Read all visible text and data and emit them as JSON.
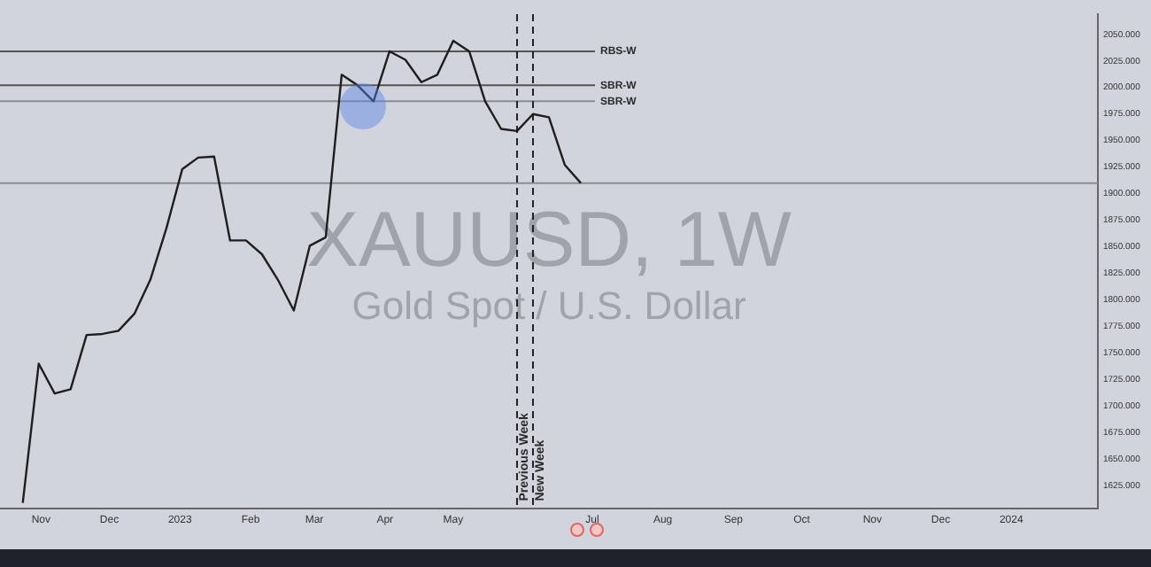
{
  "chart_data": {
    "type": "line",
    "title": "XAUUSD, 1W",
    "subtitle": "Gold Spot / U.S. Dollar",
    "x": [
      "2022-10-24",
      "2022-10-31",
      "2022-11-07",
      "2022-11-14",
      "2022-11-21",
      "2022-11-28",
      "2022-12-05",
      "2022-12-12",
      "2022-12-19",
      "2022-12-26",
      "2023-01-02",
      "2023-01-09",
      "2023-01-16",
      "2023-01-23",
      "2023-01-30",
      "2023-02-06",
      "2023-02-13",
      "2023-02-20",
      "2023-02-27",
      "2023-03-06",
      "2023-03-13",
      "2023-03-20",
      "2023-03-27",
      "2023-04-03",
      "2023-04-10",
      "2023-04-17",
      "2023-04-24",
      "2023-05-01",
      "2023-05-08",
      "2023-05-15",
      "2023-05-22",
      "2023-05-29",
      "2023-06-05",
      "2023-06-12",
      "2023-06-19",
      "2023-06-26"
    ],
    "series": [
      {
        "color": "#1e1e1e",
        "values": [
          1609,
          1740,
          1712,
          1716,
          1767,
          1768,
          1771,
          1787,
          1819,
          1867,
          1923,
          1934,
          1935,
          1856,
          1856,
          1843,
          1819,
          1790,
          1851,
          1859,
          2012,
          2002,
          1987,
          2034,
          2026,
          2005,
          2012,
          2044,
          2034,
          1987,
          1961,
          1959,
          1975,
          1972,
          1927,
          1910
        ]
      }
    ],
    "xlim": [
      "2022-10-14",
      "2024-02-08"
    ],
    "xticks": [
      {
        "value": "2022-11-01",
        "label": "Nov"
      },
      {
        "value": "2022-12-01",
        "label": "Dec"
      },
      {
        "value": "2023-01-01",
        "label": "2023"
      },
      {
        "value": "2023-02-01",
        "label": "Feb"
      },
      {
        "value": "2023-03-01",
        "label": "Mar"
      },
      {
        "value": "2023-04-01",
        "label": "Apr"
      },
      {
        "value": "2023-05-01",
        "label": "May"
      },
      {
        "value": "2023-07-01",
        "label": "Jul"
      },
      {
        "value": "2023-08-01",
        "label": "Aug"
      },
      {
        "value": "2023-09-01",
        "label": "Sep"
      },
      {
        "value": "2023-10-01",
        "label": "Oct"
      },
      {
        "value": "2023-11-01",
        "label": "Nov"
      },
      {
        "value": "2023-12-01",
        "label": "Dec"
      },
      {
        "value": "2024-01-01",
        "label": "2024"
      }
    ],
    "ylim": [
      1604,
      2069
    ],
    "yticks": [
      {
        "value": 1625,
        "label": "1625.000"
      },
      {
        "value": 1650,
        "label": "1650.000"
      },
      {
        "value": 1675,
        "label": "1675.000"
      },
      {
        "value": 1700,
        "label": "1700.000"
      },
      {
        "value": 1725,
        "label": "1725.000"
      },
      {
        "value": 1750,
        "label": "1750.000"
      },
      {
        "value": 1775,
        "label": "1775.000"
      },
      {
        "value": 1800,
        "label": "1800.000"
      },
      {
        "value": 1825,
        "label": "1825.000"
      },
      {
        "value": 1850,
        "label": "1850.000"
      },
      {
        "value": 1875,
        "label": "1875.000"
      },
      {
        "value": 1900,
        "label": "1900.000"
      },
      {
        "value": 1925,
        "label": "1925.000"
      },
      {
        "value": 1950,
        "label": "1950.000"
      },
      {
        "value": 1975,
        "label": "1975.000"
      },
      {
        "value": 2000,
        "label": "2000.000"
      },
      {
        "value": 2025,
        "label": "2025.000"
      },
      {
        "value": 2050,
        "label": "2050.000"
      }
    ],
    "ref_lines": [
      {
        "axis": "y",
        "value": 2034,
        "label": "RBS-W",
        "color": "#555555"
      },
      {
        "axis": "y",
        "value": 2002,
        "label": "SBR-W",
        "color": "#555555"
      },
      {
        "axis": "y",
        "value": 1987,
        "label": "SBR-W",
        "color": "#8a8d96"
      },
      {
        "axis": "y",
        "value": 1910,
        "color": "#8a8d96"
      },
      {
        "axis": "x",
        "value": "2023-05-29",
        "label": "Previous Week",
        "color": "#222222",
        "line_style": "dashed"
      },
      {
        "axis": "x",
        "value": "2023-06-05",
        "label": "New Week",
        "color": "#222222",
        "line_style": "dashed"
      }
    ],
    "grid": false,
    "legend": false,
    "marker": "none",
    "line_style": "solid"
  }
}
